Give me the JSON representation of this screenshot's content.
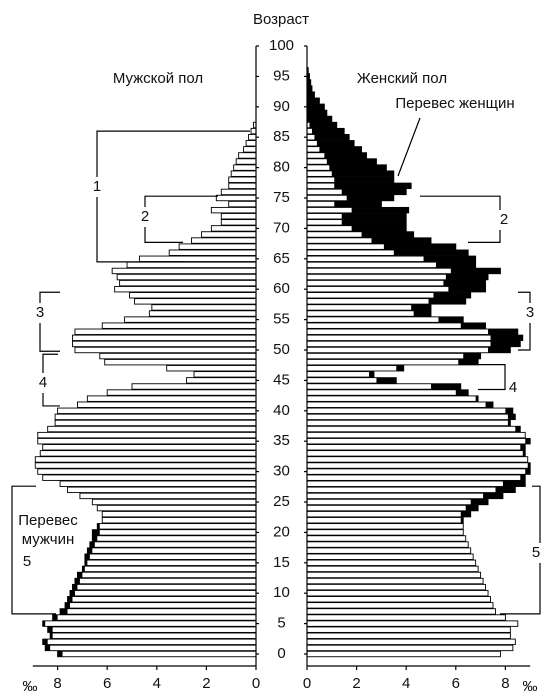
{
  "chart_data": {
    "type": "population-pyramid",
    "title": "Возраст",
    "categories": [
      0,
      1,
      2,
      3,
      4,
      5,
      6,
      7,
      8,
      9,
      10,
      11,
      12,
      13,
      14,
      15,
      16,
      17,
      18,
      19,
      20,
      21,
      22,
      23,
      24,
      25,
      26,
      27,
      28,
      29,
      30,
      31,
      32,
      33,
      34,
      35,
      36,
      37,
      38,
      39,
      40,
      41,
      42,
      43,
      44,
      45,
      46,
      47,
      48,
      49,
      50,
      51,
      52,
      53,
      54,
      55,
      56,
      57,
      58,
      59,
      60,
      61,
      62,
      63,
      64,
      65,
      66,
      67,
      68,
      69,
      70,
      71,
      72,
      73,
      74,
      75,
      76,
      77,
      78,
      79,
      80,
      81,
      82,
      83,
      84,
      85,
      86,
      87,
      88,
      89,
      90,
      91,
      92,
      93,
      94,
      95,
      96,
      97,
      98,
      99,
      100
    ],
    "ylim": [
      0,
      100
    ],
    "yticks": [
      0,
      5,
      10,
      15,
      20,
      25,
      30,
      35,
      40,
      45,
      50,
      55,
      60,
      65,
      70,
      75,
      80,
      85,
      90,
      95,
      100
    ],
    "xlim": [
      0,
      9
    ],
    "xticks": [
      0,
      2,
      4,
      6,
      8
    ],
    "x_unit": "‰",
    "excess_color": "#000000",
    "series": [
      {
        "name": "Мужской пол",
        "side": "left",
        "color": "#ffffff",
        "values": [
          8.0,
          8.5,
          8.6,
          8.3,
          8.4,
          8.6,
          8.2,
          7.9,
          7.7,
          7.6,
          7.5,
          7.4,
          7.3,
          7.2,
          7.0,
          6.9,
          6.9,
          6.8,
          6.7,
          6.6,
          6.6,
          6.4,
          6.2,
          6.2,
          6.4,
          6.6,
          7.1,
          7.6,
          7.9,
          8.6,
          8.8,
          8.9,
          8.9,
          8.7,
          8.6,
          8.8,
          8.8,
          8.4,
          8.1,
          8.1,
          8.0,
          7.2,
          6.8,
          6.0,
          5.0,
          2.8,
          2.5,
          3.6,
          6.1,
          6.3,
          7.3,
          7.4,
          7.4,
          7.3,
          6.2,
          5.3,
          4.3,
          4.2,
          4.9,
          5.1,
          5.7,
          5.5,
          5.6,
          5.8,
          5.2,
          4.7,
          3.5,
          3.1,
          2.6,
          2.2,
          1.8,
          1.4,
          1.4,
          1.8,
          1.1,
          1.6,
          1.4,
          1.1,
          1.1,
          1.0,
          0.9,
          0.8,
          0.7,
          0.5,
          0.4,
          0.3,
          0.2,
          0.1,
          0,
          0,
          0,
          0,
          0,
          0,
          0,
          0,
          0,
          0,
          0,
          0,
          0
        ]
      },
      {
        "name": "Женский пол",
        "side": "right",
        "color": "#ffffff",
        "values": [
          7.8,
          8.3,
          8.4,
          8.2,
          8.2,
          8.5,
          8.0,
          7.6,
          7.5,
          7.4,
          7.3,
          7.2,
          7.1,
          7.0,
          6.9,
          6.8,
          6.7,
          6.6,
          6.5,
          6.4,
          6.3,
          6.3,
          6.3,
          6.6,
          6.9,
          7.3,
          7.9,
          8.4,
          8.8,
          8.8,
          9.0,
          9.0,
          8.9,
          8.8,
          8.8,
          9.0,
          8.8,
          8.6,
          8.2,
          8.4,
          8.3,
          7.5,
          6.9,
          6.5,
          6.2,
          3.6,
          2.7,
          3.9,
          6.9,
          7.0,
          8.2,
          8.6,
          8.7,
          8.5,
          7.2,
          6.3,
          5.0,
          5.0,
          6.4,
          6.6,
          7.2,
          7.2,
          7.3,
          7.8,
          6.8,
          6.8,
          6.5,
          6.0,
          5.0,
          4.3,
          4.0,
          4.0,
          4.0,
          4.1,
          3.0,
          3.5,
          4.0,
          4.2,
          3.5,
          3.5,
          3.2,
          2.8,
          2.4,
          2.2,
          1.9,
          1.7,
          1.5,
          1.2,
          1.0,
          0.8,
          0.7,
          0.5,
          0.3,
          0.2,
          0.15,
          0.1,
          0.05,
          0,
          0,
          0,
          0
        ]
      }
    ],
    "annotations": {
      "female_excess": "Перевес женщин",
      "male_excess_1": "Перевес",
      "male_excess_2": "мужчин",
      "brackets": [
        "1",
        "2",
        "3",
        "4",
        "5",
        "2",
        "3",
        "4",
        "5"
      ]
    }
  }
}
